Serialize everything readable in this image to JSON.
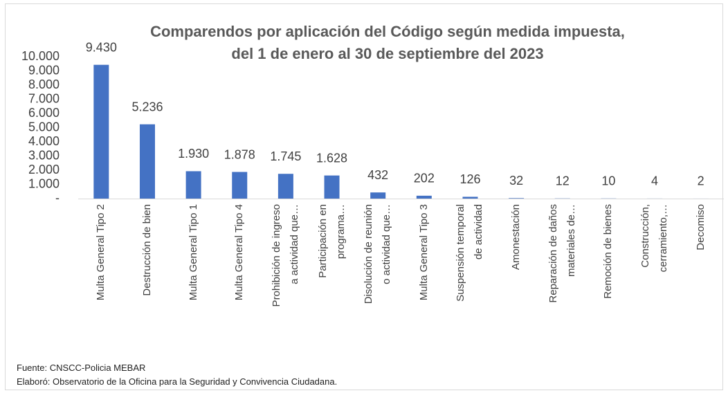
{
  "chart_data": {
    "type": "bar",
    "title": "Comparendos por aplicación del Código según medida impuesta,\ndel 1 de enero al 30 de septiembre del 2023",
    "categories": [
      "Multa General Tipo 2",
      "Destrucción de bien",
      "Multa General Tipo 1",
      "Multa General Tipo 4",
      "Prohibición de ingreso\na actividad que…",
      "Participación en\nprograma…",
      "Disolución de reunión\no actividad que…",
      "Multa General Tipo 3",
      "Suspensión temporal\nde actividad",
      "Amonestación",
      "Reparación de daños\nmateriales de…",
      "Remoción de bienes",
      "Construcción,\ncerramiento,…",
      "Decomiso"
    ],
    "values": [
      9430,
      5236,
      1930,
      1878,
      1745,
      1628,
      432,
      202,
      126,
      32,
      12,
      10,
      4,
      2
    ],
    "value_labels": [
      "9.430",
      "5.236",
      "1.930",
      "1.878",
      "1.745",
      "1.628",
      "432",
      "202",
      "126",
      "32",
      "12",
      "10",
      "4",
      "2"
    ],
    "color": "#4472c4",
    "ylim": [
      0,
      10000
    ],
    "yticks": [
      {
        "value": 0,
        "label": "-"
      },
      {
        "value": 1000,
        "label": "1.000"
      },
      {
        "value": 2000,
        "label": "2.000"
      },
      {
        "value": 3000,
        "label": "3.000"
      },
      {
        "value": 4000,
        "label": "4.000"
      },
      {
        "value": 5000,
        "label": "5.000"
      },
      {
        "value": 6000,
        "label": "6.000"
      },
      {
        "value": 7000,
        "label": "7.000"
      },
      {
        "value": 8000,
        "label": "8.000"
      },
      {
        "value": 9000,
        "label": "9.000"
      },
      {
        "value": 10000,
        "label": "10.000"
      }
    ],
    "grid": false,
    "notes": [
      "Fuente: CNSCC-Policia MEBAR",
      "Elaboró: Observatorio de la Oficina para la Seguridad y Convivencia Ciudadana."
    ]
  }
}
